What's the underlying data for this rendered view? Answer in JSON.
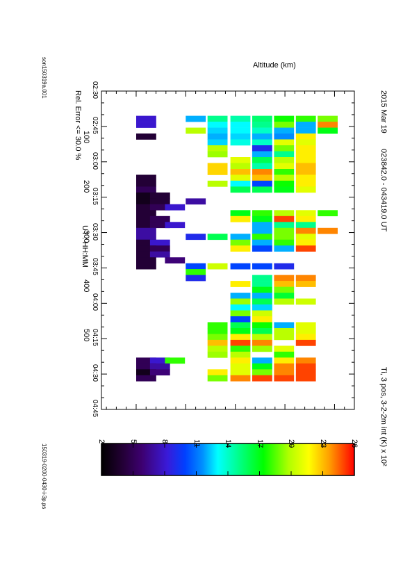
{
  "header": {
    "date": "2015 Mar 19",
    "time_range": "023842.0 - 043419.0 UT",
    "param": "Ti, 3 pos, 3-2-2m int (K) x 10²"
  },
  "footer": {
    "error_note": "Rel. Error <= 30.0 %",
    "left_file": "son150319a.001",
    "right_file": "150319-0200-0430-i-3p.ps"
  },
  "chart_data": {
    "type": "heatmap",
    "xlabel": "UT : HH:MM",
    "ylabel": "Altitude (km)",
    "x_ticks": [
      {
        "v": 150,
        "label": "02:30"
      },
      {
        "v": 165,
        "label": "02:45"
      },
      {
        "v": 180,
        "label": "03:00"
      },
      {
        "v": 195,
        "label": "03:15"
      },
      {
        "v": 210,
        "label": "03:30"
      },
      {
        "v": 225,
        "label": "03:45"
      },
      {
        "v": 240,
        "label": "04:00"
      },
      {
        "v": 255,
        "label": "04:15"
      },
      {
        "v": 270,
        "label": "04:30"
      },
      {
        "v": 285,
        "label": "04:45"
      }
    ],
    "xlim": [
      150,
      285
    ],
    "y_ticks": [
      100,
      200,
      300,
      400,
      500
    ],
    "ylim": [
      30,
      540
    ],
    "colorbar": {
      "min": 2,
      "max": 26,
      "ticks": [
        2,
        5,
        8,
        11,
        14,
        17,
        20,
        23,
        26
      ]
    },
    "cell_height_km": 40,
    "altitudes": [
      120,
      148,
      178,
      220,
      264,
      310,
      354,
      398,
      442,
      486
    ],
    "columns": [
      {
        "t0": 158.5,
        "t1": 160.5,
        "vals": [
          null,
          null,
          null,
          null,
          null,
          null,
          null,
          null,
          null,
          null
        ]
      },
      {
        "t0": 160.5,
        "t1": 163.0,
        "vals": [
          8,
          null,
          null,
          12,
          15,
          14.5,
          15.5,
          17.5,
          18,
          19
        ]
      },
      {
        "t0": 163.0,
        "t1": 165.5,
        "vals": [
          8,
          null,
          null,
          null,
          13,
          13,
          15,
          19,
          12,
          24
        ]
      },
      {
        "t0": 165.5,
        "t1": 168.0,
        "vals": [
          null,
          null,
          null,
          20,
          12.5,
          13,
          14,
          12,
          12,
          17
        ]
      },
      {
        "t0": 168.0,
        "t1": 170.5,
        "vals": [
          4,
          null,
          null,
          null,
          12,
          12.5,
          12,
          11.5,
          22,
          null
        ]
      },
      {
        "t0": 170.5,
        "t1": 173.0,
        "vals": [
          null,
          null,
          null,
          null,
          12.5,
          13.5,
          14,
          21,
          21,
          null
        ]
      },
      {
        "t0": 173.0,
        "t1": 175.5,
        "vals": [
          null,
          null,
          null,
          null,
          20,
          null,
          9,
          19,
          22,
          null
        ]
      },
      {
        "t0": 175.5,
        "t1": 178.0,
        "vals": [
          null,
          null,
          null,
          null,
          19.5,
          null,
          12,
          15,
          22,
          null
        ]
      },
      {
        "t0": 178.0,
        "t1": 180.5,
        "vals": [
          null,
          null,
          null,
          null,
          null,
          21,
          16,
          20,
          22,
          null
        ]
      },
      {
        "t0": 180.5,
        "t1": 183.0,
        "vals": [
          null,
          null,
          null,
          null,
          22.5,
          20,
          14.5,
          21,
          23,
          null
        ]
      },
      {
        "t0": 183.0,
        "t1": 185.5,
        "vals": [
          null,
          null,
          null,
          null,
          22.5,
          23,
          24,
          18,
          23,
          null
        ]
      },
      {
        "t0": 185.5,
        "t1": 188.0,
        "vals": [
          4,
          null,
          null,
          null,
          null,
          21,
          23,
          20,
          22,
          null
        ]
      },
      {
        "t0": 188.0,
        "t1": 190.5,
        "vals": [
          4,
          null,
          null,
          null,
          20,
          13,
          10,
          17.5,
          22,
          null
        ]
      },
      {
        "t0": 190.5,
        "t1": 193.0,
        "vals": [
          5,
          null,
          null,
          null,
          null,
          16,
          16,
          17,
          21,
          null
        ]
      },
      {
        "t0": 193.0,
        "t1": 195.5,
        "vals": [
          3,
          4,
          null,
          null,
          null,
          null,
          null,
          null,
          null,
          null
        ]
      },
      {
        "t0": 195.5,
        "t1": 198.0,
        "vals": [
          3,
          4,
          null,
          7,
          null,
          null,
          null,
          null,
          null,
          null
        ]
      },
      {
        "t0": 198.0,
        "t1": 200.5,
        "vals": [
          4,
          5,
          8,
          null,
          null,
          null,
          null,
          null,
          null,
          null
        ]
      },
      {
        "t0": 200.5,
        "t1": 203.0,
        "vals": [
          4,
          null,
          null,
          null,
          null,
          17,
          18,
          20,
          21,
          18
        ]
      },
      {
        "t0": 203.0,
        "t1": 205.5,
        "vals": [
          4,
          5,
          null,
          null,
          null,
          22,
          17,
          25,
          22,
          null
        ]
      },
      {
        "t0": 205.5,
        "t1": 208.0,
        "vals": [
          4,
          5,
          8,
          null,
          null,
          null,
          12,
          15,
          15,
          null
        ]
      },
      {
        "t0": 208.0,
        "t1": 210.5,
        "vals": [
          7,
          null,
          null,
          null,
          null,
          null,
          12,
          19,
          24,
          24
        ]
      },
      {
        "t0": 210.5,
        "t1": 213.0,
        "vals": [
          7,
          null,
          null,
          9,
          16,
          12,
          18,
          19,
          21,
          null
        ]
      },
      {
        "t0": 213.0,
        "t1": 215.5,
        "vals": [
          4,
          8,
          null,
          null,
          null,
          19,
          12,
          18,
          22,
          null
        ]
      },
      {
        "t0": 215.5,
        "t1": 218.0,
        "vals": [
          4,
          5,
          null,
          null,
          null,
          22,
          10,
          12,
          25,
          null
        ]
      },
      {
        "t0": 218.0,
        "t1": 220.5,
        "vals": [
          4,
          7,
          null,
          null,
          null,
          null,
          null,
          null,
          null,
          null
        ]
      },
      {
        "t0": 220.5,
        "t1": 223.0,
        "vals": [
          4,
          null,
          6,
          null,
          null,
          null,
          null,
          null,
          null,
          null
        ]
      },
      {
        "t0": 223.0,
        "t1": 225.5,
        "vals": [
          4,
          null,
          null,
          10,
          20.5,
          10,
          10,
          9,
          null,
          null
        ]
      },
      {
        "t0": 225.5,
        "t1": 228.0,
        "vals": [
          null,
          null,
          null,
          18,
          null,
          null,
          null,
          null,
          null,
          null
        ]
      },
      {
        "t0": 228.0,
        "t1": 230.5,
        "vals": [
          null,
          null,
          null,
          9,
          null,
          null,
          15,
          24,
          24,
          null
        ]
      },
      {
        "t0": 230.5,
        "t1": 233.0,
        "vals": [
          null,
          null,
          null,
          null,
          null,
          22,
          15,
          23,
          23,
          null
        ]
      },
      {
        "t0": 233.0,
        "t1": 235.5,
        "vals": [
          null,
          null,
          null,
          null,
          null,
          null,
          17,
          19,
          null,
          null
        ]
      },
      {
        "t0": 235.5,
        "t1": 238.0,
        "vals": [
          null,
          null,
          null,
          null,
          null,
          12,
          12,
          16.5,
          null,
          null
        ]
      },
      {
        "t0": 238.0,
        "t1": 240.5,
        "vals": [
          null,
          null,
          null,
          null,
          null,
          19.5,
          16,
          20,
          20.5,
          null
        ]
      },
      {
        "t0": 240.5,
        "t1": 243.0,
        "vals": [
          null,
          null,
          null,
          null,
          null,
          13,
          12.5,
          null,
          null,
          null
        ]
      },
      {
        "t0": 243.0,
        "t1": 245.5,
        "vals": [
          null,
          null,
          null,
          null,
          null,
          19,
          20.5,
          null,
          null,
          null
        ]
      },
      {
        "t0": 245.5,
        "t1": 248.0,
        "vals": [
          null,
          null,
          null,
          null,
          null,
          10,
          22,
          null,
          null,
          null
        ]
      },
      {
        "t0": 248.0,
        "t1": 250.5,
        "vals": [
          null,
          null,
          null,
          null,
          18,
          16,
          17.5,
          12,
          21,
          null
        ]
      },
      {
        "t0": 250.5,
        "t1": 253.0,
        "vals": [
          null,
          null,
          null,
          null,
          18,
          17,
          16,
          20,
          21,
          null
        ]
      },
      {
        "t0": 253.0,
        "t1": 255.5,
        "vals": [
          null,
          null,
          null,
          null,
          19,
          22,
          20,
          20,
          22,
          null
        ]
      },
      {
        "t0": 255.5,
        "t1": 258.0,
        "vals": [
          null,
          null,
          null,
          null,
          23,
          25,
          24,
          null,
          25,
          null
        ]
      },
      {
        "t0": 258.0,
        "t1": 260.5,
        "vals": [
          null,
          null,
          null,
          null,
          20,
          18,
          19.5,
          21,
          null,
          null
        ]
      },
      {
        "t0": 260.5,
        "t1": 263.0,
        "vals": [
          null,
          null,
          null,
          null,
          19.5,
          20,
          null,
          18,
          null,
          null
        ]
      },
      {
        "t0": 263.0,
        "t1": 265.5,
        "vals": [
          5,
          8,
          18,
          null,
          null,
          22,
          12,
          22,
          24,
          null
        ]
      },
      {
        "t0": 265.5,
        "t1": 268.0,
        "vals": [
          5,
          7,
          null,
          null,
          null,
          21,
          17,
          24,
          25,
          null
        ]
      },
      {
        "t0": 268.0,
        "t1": 270.5,
        "vals": [
          3,
          6,
          null,
          null,
          22,
          21,
          19,
          24,
          25,
          null
        ]
      },
      {
        "t0": 270.5,
        "t1": 273.0,
        "vals": [
          5,
          null,
          null,
          null,
          19,
          24,
          25,
          25,
          25,
          null
        ]
      }
    ]
  }
}
